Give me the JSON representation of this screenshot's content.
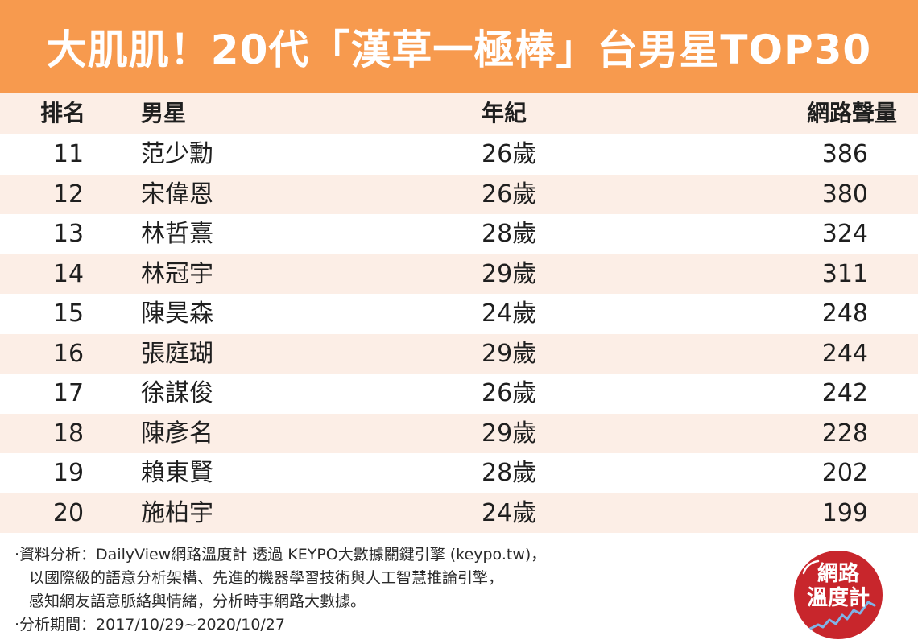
{
  "header": {
    "title": "大肌肌！20代「漢草一極棒」台男星TOP30"
  },
  "columns": {
    "rank": "排名",
    "name": "男星",
    "age": "年紀",
    "buzz": "網路聲量"
  },
  "rows": [
    {
      "rank": "11",
      "name": "范少勳",
      "age": "26歲",
      "buzz": "386"
    },
    {
      "rank": "12",
      "name": "宋偉恩",
      "age": "26歲",
      "buzz": "380"
    },
    {
      "rank": "13",
      "name": "林哲熹",
      "age": "28歲",
      "buzz": "324"
    },
    {
      "rank": "14",
      "name": "林冠宇",
      "age": "29歲",
      "buzz": "311"
    },
    {
      "rank": "15",
      "name": "陳昊森",
      "age": "24歲",
      "buzz": "248"
    },
    {
      "rank": "16",
      "name": "張庭瑚",
      "age": "29歲",
      "buzz": "244"
    },
    {
      "rank": "17",
      "name": "徐謀俊",
      "age": "26歲",
      "buzz": "242"
    },
    {
      "rank": "18",
      "name": "陳彥名",
      "age": "29歲",
      "buzz": "228"
    },
    {
      "rank": "19",
      "name": "賴東賢",
      "age": "28歲",
      "buzz": "202"
    },
    {
      "rank": "20",
      "name": "施柏宇",
      "age": "24歲",
      "buzz": "199"
    }
  ],
  "footer": {
    "line1": "‧資料分析：DailyView網路溫度計 透過 KEYPO大數據關鍵引擎 (keypo.tw)，",
    "line2": "以國際級的語意分析架構、先進的機器學習技術與人工智慧推論引擎，",
    "line3": "感知網友語意脈絡與情緒，分析時事網路大數據。",
    "line4": "‧分析期間：2017/10/29~2020/10/27"
  },
  "logo": {
    "line1": "網路",
    "line2": "溫度計"
  },
  "colors": {
    "header_bg": "#f79a4e",
    "stripe": "#fceee6",
    "logo_bg": "#c8262c"
  }
}
